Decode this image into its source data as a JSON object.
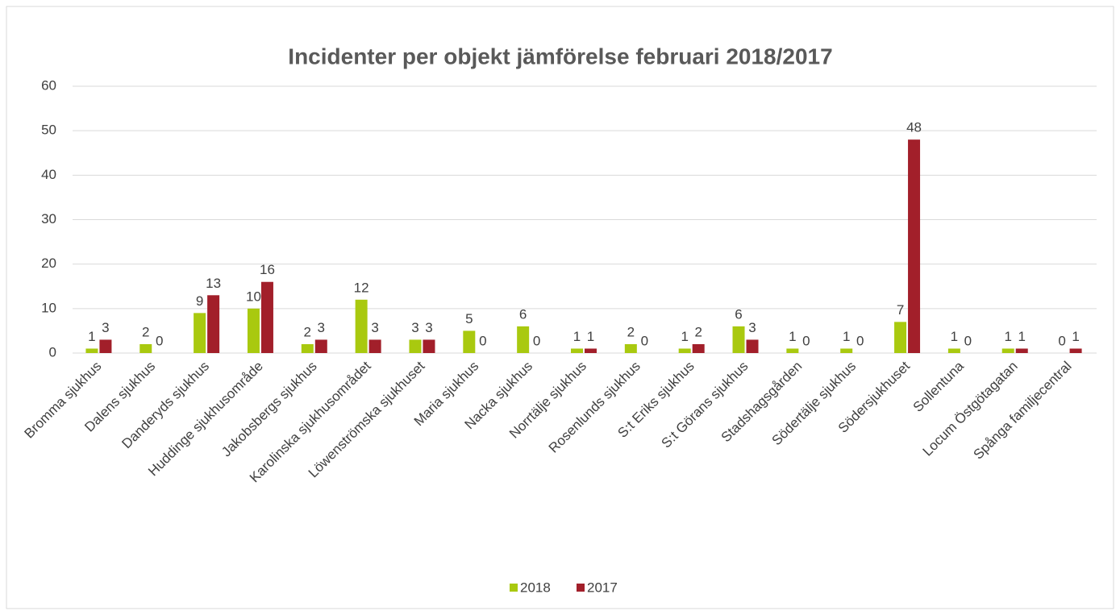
{
  "chart_data": {
    "type": "bar",
    "title": "Incidenter per objekt jämförelse februari 2018/2017",
    "categories": [
      "Bromma sjukhus",
      "Dalens sjukhus",
      "Danderyds sjukhus",
      "Huddinge sjukhusområde",
      "Jakobsbergs sjukhus",
      "Karolinska sjukhusområdet",
      "Löwenströmska sjukhuset",
      "Maria sjukhus",
      "Nacka sjukhus",
      "Norrtälje sjukhus",
      "Rosenlunds sjukhus",
      "S:t Eriks sjukhus",
      "S:t Görans sjukhus",
      "Stadshagsgården",
      "Södertälje sjukhus",
      "Södersjukhuset",
      "Sollentuna",
      "Locum Östgötagatan",
      "Spånga familjecentral"
    ],
    "series": [
      {
        "name": "2018",
        "color": "#a9c90f",
        "values": [
          1,
          2,
          9,
          10,
          2,
          12,
          3,
          5,
          6,
          1,
          2,
          1,
          6,
          1,
          1,
          7,
          1,
          1,
          0
        ]
      },
      {
        "name": "2017",
        "color": "#a21f2a",
        "values": [
          3,
          0,
          13,
          16,
          3,
          3,
          3,
          0,
          0,
          1,
          0,
          2,
          3,
          0,
          0,
          48,
          0,
          1,
          1
        ]
      }
    ],
    "ylim": [
      0,
      60
    ],
    "yticks": [
      0,
      10,
      20,
      30,
      40,
      50,
      60
    ],
    "grid": true,
    "legend": "bottom"
  }
}
